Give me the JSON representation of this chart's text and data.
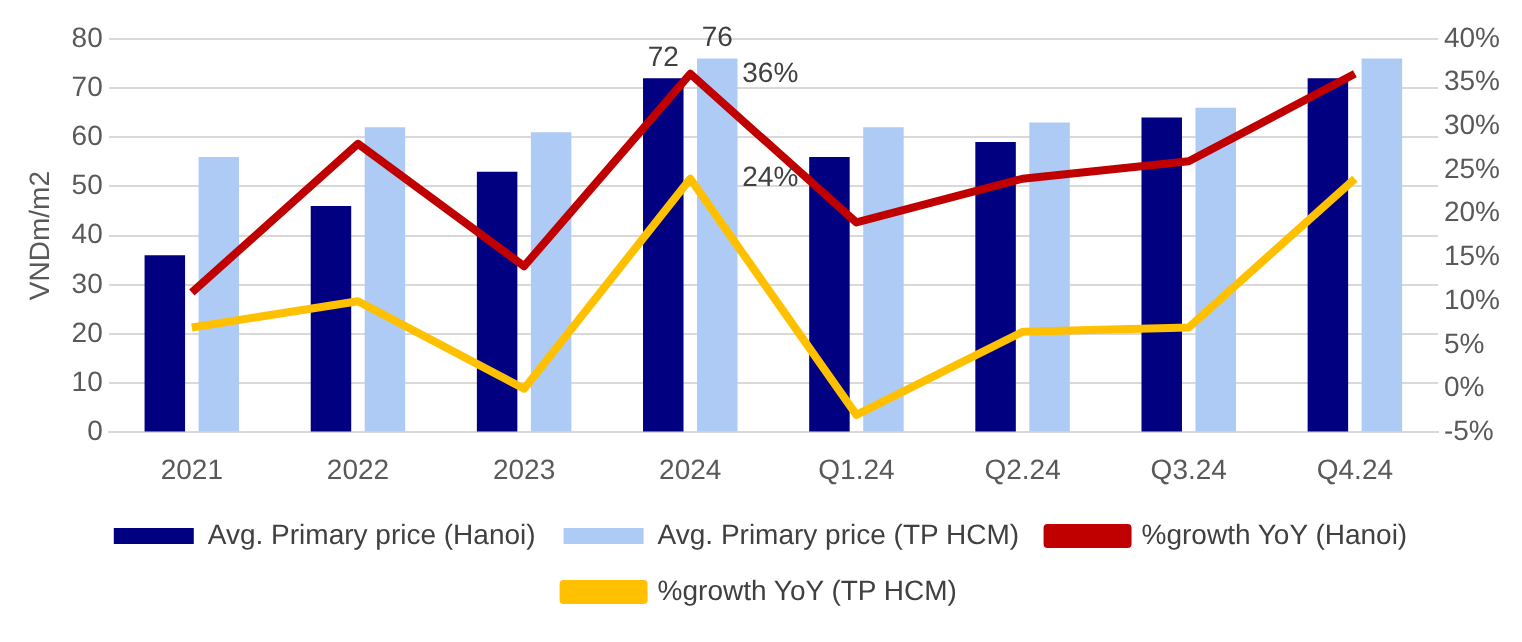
{
  "chart_data": {
    "type": "bar",
    "ylabel": "VNDm/m2",
    "categories": [
      "2021",
      "2022",
      "2023",
      "2024",
      "Q1.24",
      "Q2.24",
      "Q3.24",
      "Q4.24"
    ],
    "series": [
      {
        "name": "Avg. Primary price (Hanoi)",
        "color": "#000080",
        "values": [
          36,
          46,
          53,
          72,
          56,
          59,
          64,
          72
        ],
        "value_labels": [
          null,
          null,
          null,
          "72",
          null,
          null,
          null,
          null
        ]
      },
      {
        "name": "Avg. Primary price (TP HCM)",
        "color": "#aecbf5",
        "values": [
          56,
          62,
          61,
          76,
          62,
          63,
          66,
          76
        ],
        "value_labels": [
          null,
          null,
          null,
          "76",
          null,
          null,
          null,
          null
        ]
      },
      {
        "name": "%growth YoY (Hanoi)",
        "type": "line",
        "axis": "y2",
        "color": "#c00000",
        "values": [
          11,
          28,
          14,
          36,
          19,
          24,
          26,
          36
        ],
        "value_labels": [
          null,
          null,
          null,
          "36%",
          null,
          null,
          null,
          null
        ]
      },
      {
        "name": "%growth YoY (TP HCM)",
        "type": "line",
        "axis": "y2",
        "color": "#ffc000",
        "values": [
          7,
          10,
          0,
          24,
          -3,
          6.5,
          7,
          24
        ],
        "value_labels": [
          null,
          null,
          null,
          "24%",
          null,
          null,
          null,
          null
        ]
      }
    ],
    "ylim": [
      0,
      80
    ],
    "yticks": [
      0,
      10,
      20,
      30,
      40,
      50,
      60,
      70,
      80
    ],
    "y2lim": [
      -5,
      40
    ],
    "y2ticks": [
      {
        "value": -5,
        "label": "-5%"
      },
      {
        "value": 0,
        "label": "0%"
      },
      {
        "value": 5,
        "label": "5%"
      },
      {
        "value": 10,
        "label": "10%"
      },
      {
        "value": 15,
        "label": "15%"
      },
      {
        "value": 20,
        "label": "20%"
      },
      {
        "value": 25,
        "label": "25%"
      },
      {
        "value": 30,
        "label": "30%"
      },
      {
        "value": 35,
        "label": "35%"
      },
      {
        "value": 40,
        "label": "40%"
      }
    ],
    "grid": "y",
    "legend": "bottom",
    "marker": "none"
  }
}
